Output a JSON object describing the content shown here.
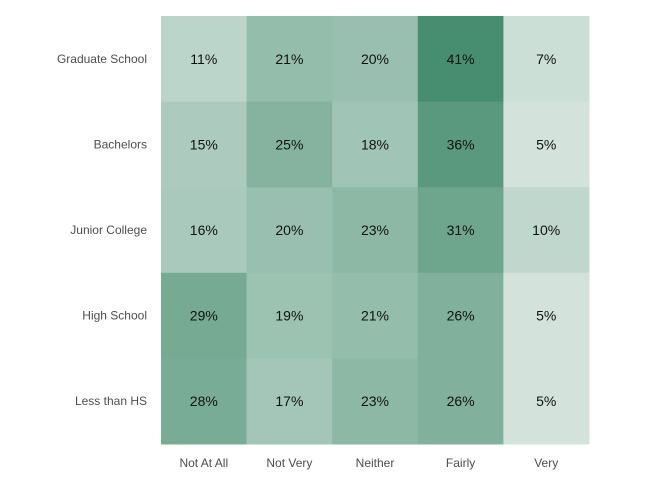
{
  "chart_data": {
    "type": "heatmap",
    "title": "",
    "xlabel": "",
    "ylabel": "",
    "rows": [
      "Graduate School",
      "Bachelors",
      "Junior College",
      "High School",
      "Less than HS"
    ],
    "columns": [
      "Not At All",
      "Not Very",
      "Neither",
      "Fairly",
      "Very"
    ],
    "values": [
      [
        11,
        21,
        20,
        41,
        7
      ],
      [
        15,
        25,
        18,
        36,
        5
      ],
      [
        16,
        20,
        23,
        31,
        10
      ],
      [
        29,
        19,
        21,
        26,
        5
      ],
      [
        28,
        17,
        23,
        26,
        5
      ]
    ],
    "value_suffix": "%",
    "color_scale": {
      "low": "#ffffff",
      "high": "#2e7d5b"
    },
    "grid": false,
    "legend": "none"
  }
}
